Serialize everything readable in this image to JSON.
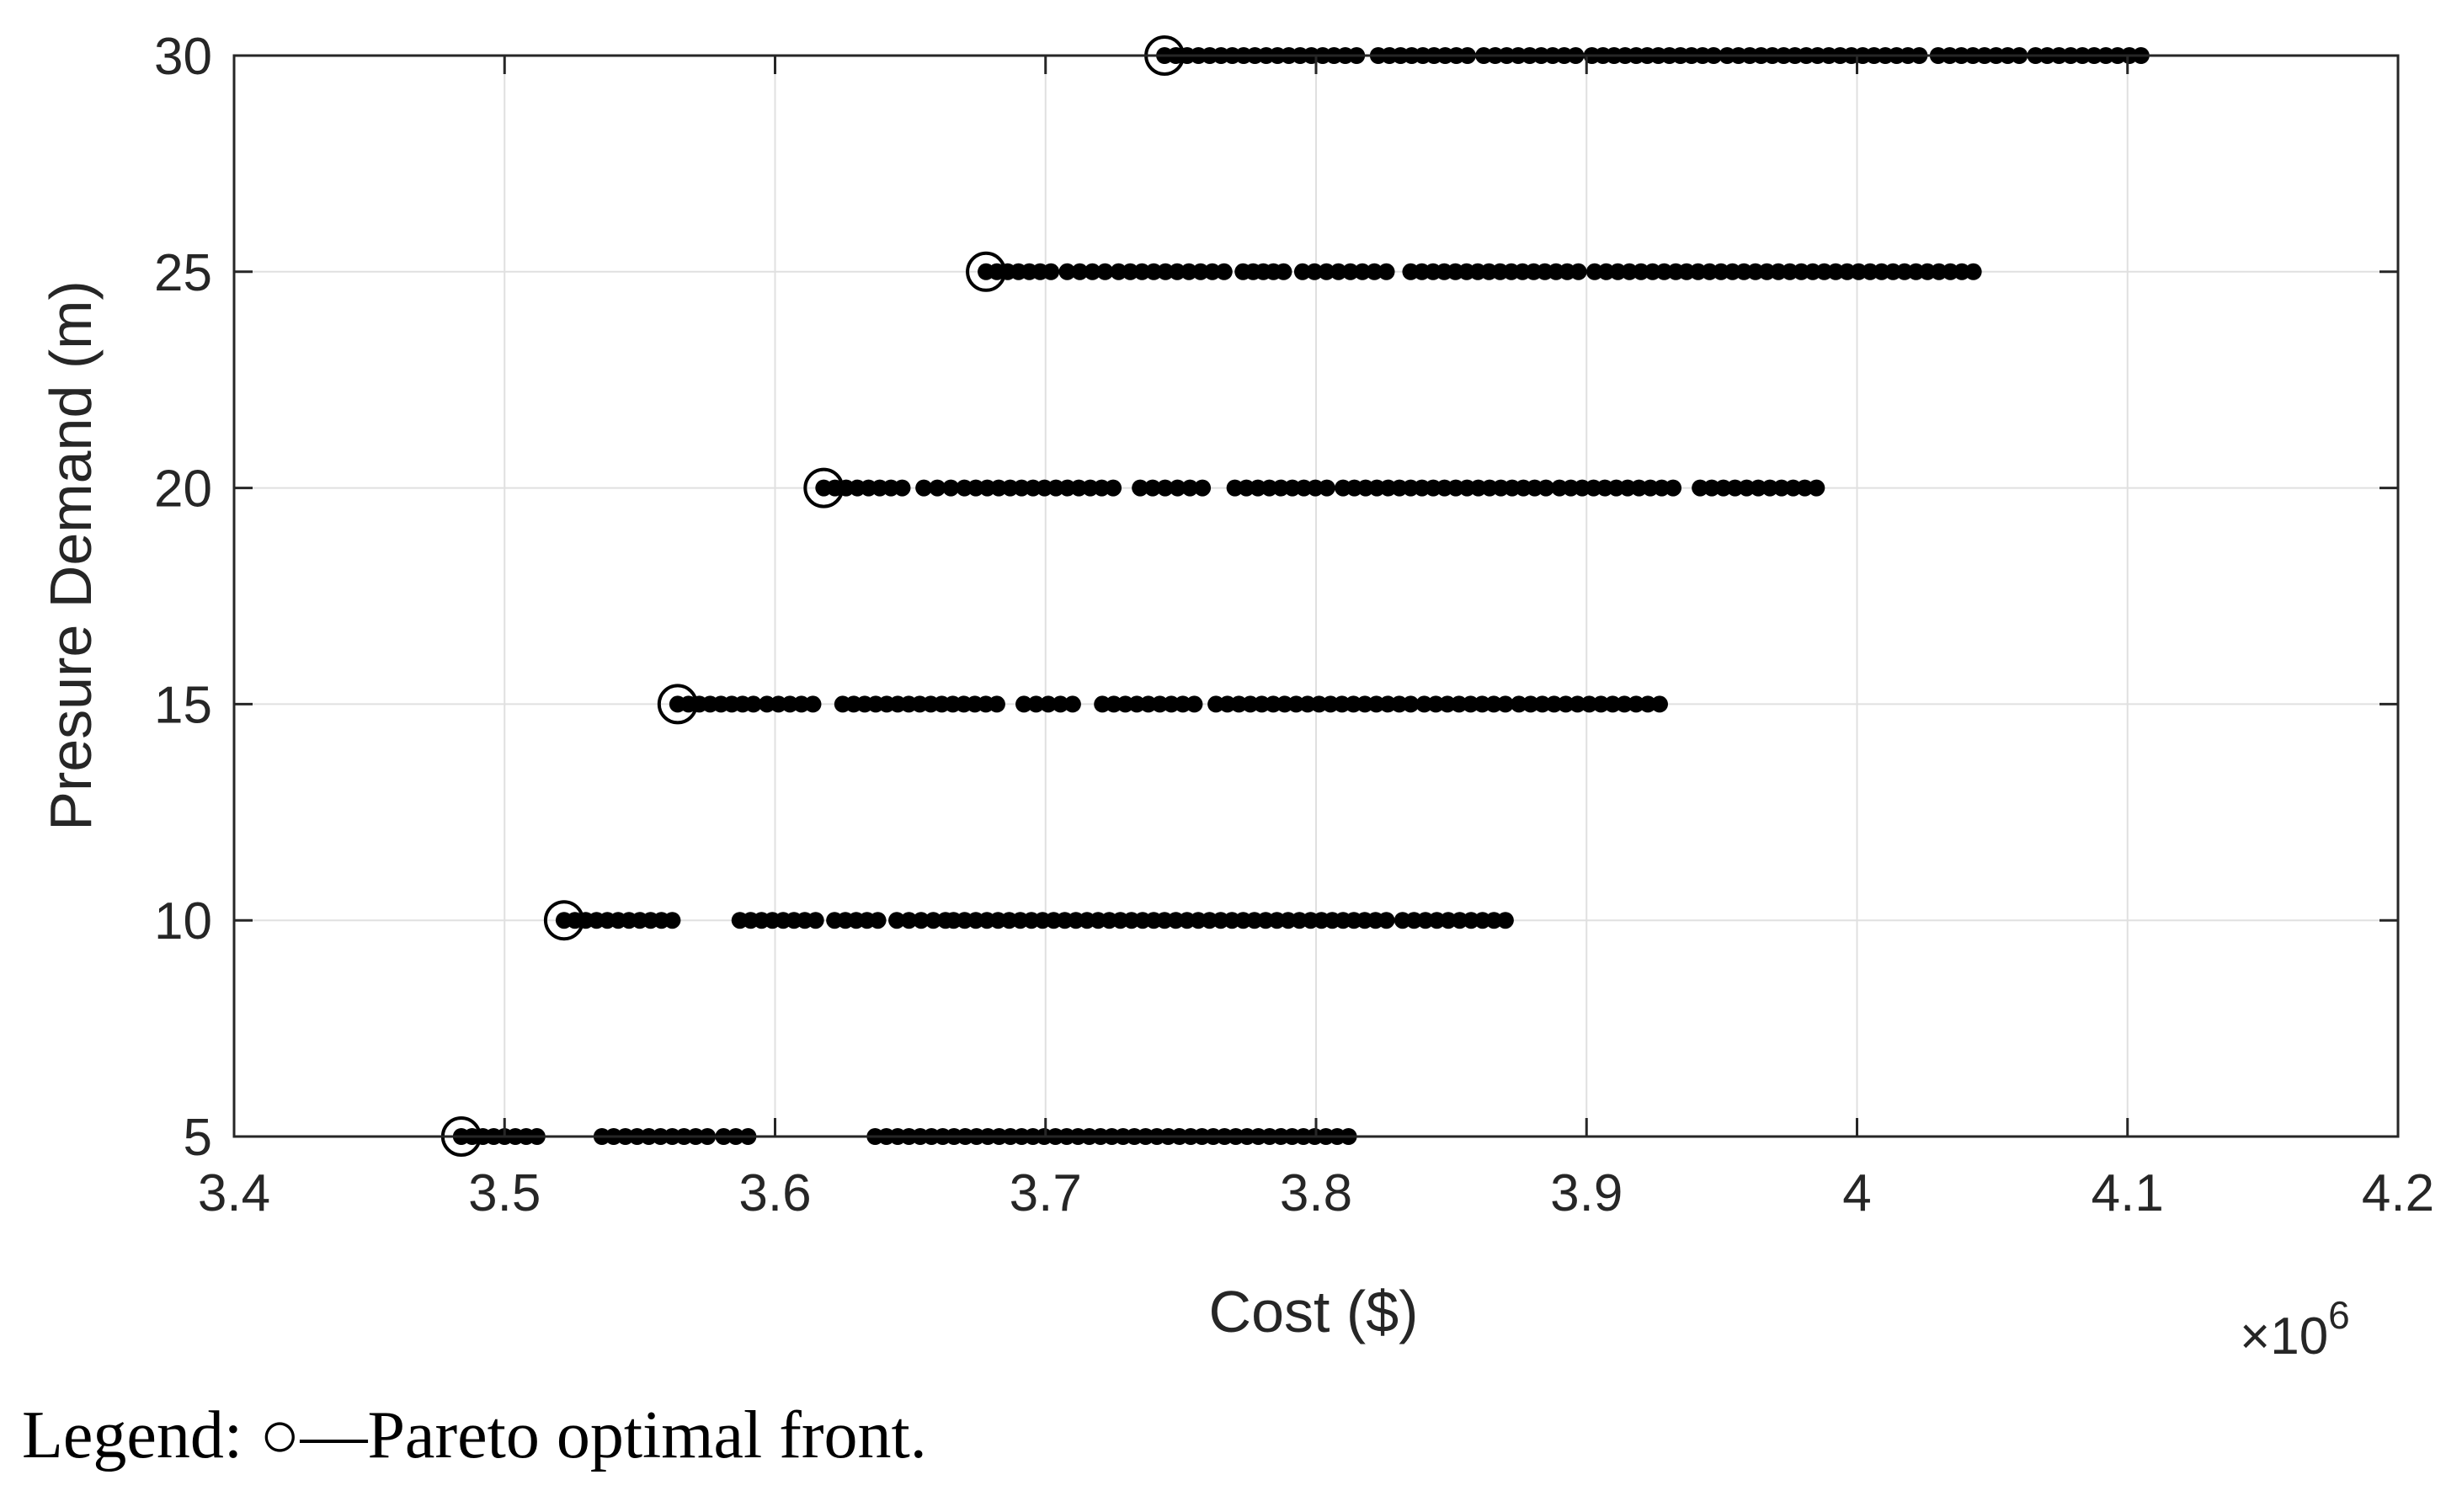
{
  "chart_data": {
    "type": "scatter",
    "xlabel": "Cost ($)",
    "ylabel": "Presure Demand (m)",
    "x_multiplier_label": "×10",
    "x_multiplier_exponent": "6",
    "xlim": [
      3.4,
      4.2
    ],
    "ylim": [
      5,
      30
    ],
    "x_ticks": [
      3.4,
      3.5,
      3.6,
      3.7,
      3.8,
      3.9,
      4.0,
      4.1,
      4.2
    ],
    "x_tick_labels": [
      "3.4",
      "3.5",
      "3.6",
      "3.7",
      "3.8",
      "3.9",
      "4",
      "4.1",
      "4.2"
    ],
    "y_ticks": [
      5,
      10,
      15,
      20,
      25,
      30
    ],
    "y_tick_labels": [
      "5",
      "10",
      "15",
      "20",
      "25",
      "30"
    ],
    "grid": true,
    "series": [
      {
        "marker": "filled-dot",
        "points": [
          {
            "y": 5,
            "segments": [
              [
                3.484,
                3.512
              ],
              [
                3.536,
                3.575
              ],
              [
                3.581,
                3.59
              ],
              [
                3.637,
                3.812
              ]
            ]
          },
          {
            "y": 10,
            "segments": [
              [
                3.522,
                3.562
              ],
              [
                3.587,
                3.615
              ],
              [
                3.622,
                3.638
              ],
              [
                3.645,
                3.663
              ],
              [
                3.666,
                3.74
              ],
              [
                3.744,
                3.798
              ],
              [
                3.802,
                3.826
              ],
              [
                3.832,
                3.87
              ]
            ]
          },
          {
            "y": 15,
            "segments": [
              [
                3.564,
                3.592
              ],
              [
                3.597,
                3.614
              ],
              [
                3.625,
                3.682
              ],
              [
                3.692,
                3.71
              ],
              [
                3.721,
                3.755
              ],
              [
                3.763,
                3.835
              ],
              [
                3.84,
                3.87
              ],
              [
                3.875,
                3.927
              ]
            ]
          },
          {
            "y": 20,
            "segments": [
              [
                3.618,
                3.647
              ],
              [
                3.655,
                3.665
              ],
              [
                3.67,
                3.725
              ],
              [
                3.735,
                3.758
              ],
              [
                3.77,
                3.804
              ],
              [
                3.81,
                3.885
              ],
              [
                3.89,
                3.932
              ],
              [
                3.942,
                3.985
              ]
            ]
          },
          {
            "y": 25,
            "segments": [
              [
                3.678,
                3.702
              ],
              [
                3.708,
                3.722
              ],
              [
                3.727,
                3.766
              ],
              [
                3.773,
                3.788
              ],
              [
                3.795,
                3.826
              ],
              [
                3.835,
                3.897
              ],
              [
                3.903,
                3.933
              ],
              [
                3.937,
                4.043
              ]
            ]
          },
          {
            "y": 30,
            "segments": [
              [
                3.744,
                3.815
              ],
              [
                3.823,
                3.856
              ],
              [
                3.862,
                3.896
              ],
              [
                3.902,
                3.947
              ],
              [
                3.952,
                4.023
              ],
              [
                4.03,
                4.06
              ],
              [
                4.066,
                4.105
              ]
            ]
          }
        ]
      },
      {
        "marker": "open-circle",
        "points": [
          {
            "x": 3.484,
            "y": 5
          },
          {
            "x": 3.522,
            "y": 10
          },
          {
            "x": 3.564,
            "y": 15
          },
          {
            "x": 3.618,
            "y": 20
          },
          {
            "x": 3.678,
            "y": 25
          },
          {
            "x": 3.744,
            "y": 30
          }
        ]
      }
    ],
    "colors": {
      "dot": "#000000",
      "grid": "#e0e0e0",
      "axis": "#262626"
    }
  },
  "caption": {
    "prefix": "Legend: ",
    "symbol": "○",
    "dash": "—",
    "text": "Pareto optimal front."
  }
}
